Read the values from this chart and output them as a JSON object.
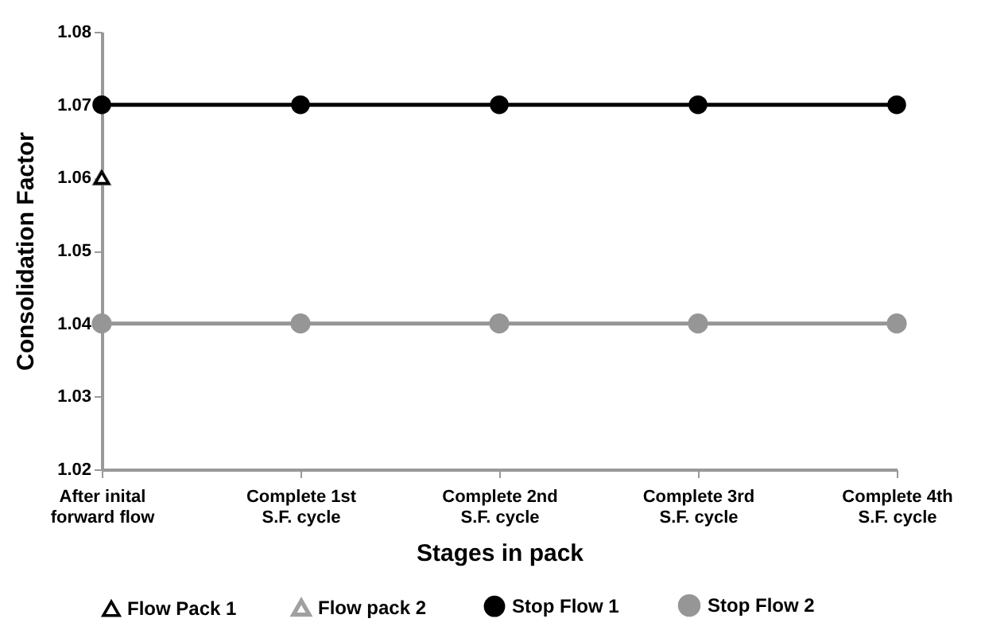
{
  "chart_data": {
    "type": "line",
    "xlabel": "Stages in pack",
    "ylabel": "Consolidation Factor",
    "categories": [
      "After inital\nforward flow",
      "Complete 1st\nS.F. cycle",
      "Complete 2nd\nS.F. cycle",
      "Complete 3rd\nS.F. cycle",
      "Complete 4th\nS.F. cycle"
    ],
    "series": [
      {
        "name": "Flow Pack 1",
        "type": "scatter",
        "marker": "triangle",
        "color": "#000000",
        "values": [
          1.06,
          null,
          null,
          null,
          null
        ]
      },
      {
        "name": "Flow pack 2",
        "type": "scatter",
        "marker": "triangle",
        "color": "#a0a0a0",
        "values": [
          1.06,
          null,
          null,
          null,
          null
        ]
      },
      {
        "name": "Stop Flow 1",
        "type": "line",
        "marker": "circle",
        "color": "#000000",
        "values": [
          1.07,
          1.07,
          1.07,
          1.07,
          1.07
        ]
      },
      {
        "name": "Stop Flow 2",
        "type": "line",
        "marker": "circle",
        "color": "#969696",
        "values": [
          1.04,
          1.04,
          1.04,
          1.04,
          1.04
        ]
      }
    ],
    "ylim": [
      1.02,
      1.08
    ],
    "yticks": [
      1.02,
      1.03,
      1.04,
      1.05,
      1.06,
      1.07,
      1.08
    ],
    "legend": "bottom",
    "grid": false
  }
}
